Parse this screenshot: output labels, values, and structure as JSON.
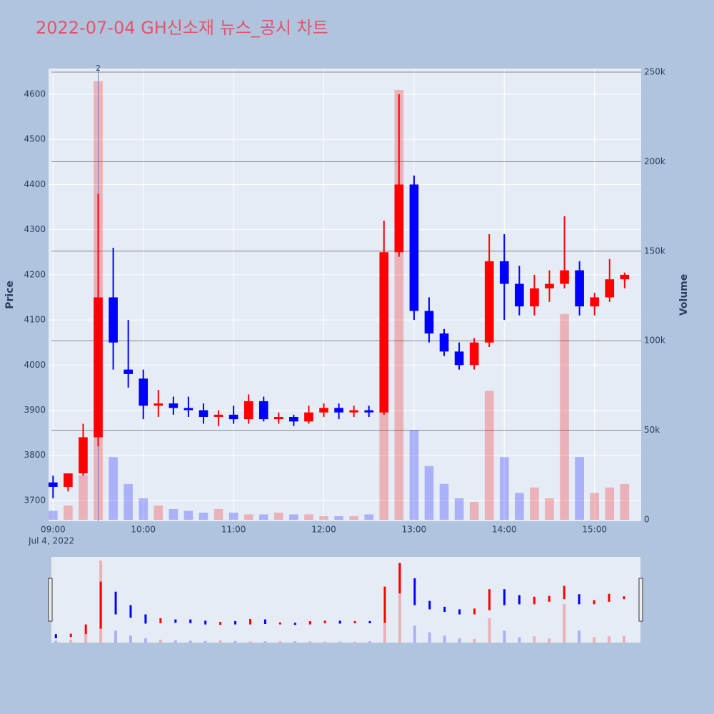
{
  "chart_data": {
    "type": "candlestick",
    "title": "2022-07-04 GH신소재 뉴스_공시 차트",
    "x_date_label": "Jul 4, 2022",
    "y_axis_label": "Price",
    "y2_axis_label": "Volume",
    "annotation": "2",
    "annotation_x": "09:30",
    "increasing_color": "#ff0000",
    "decreasing_color": "#0000ff",
    "x": [
      "09:00",
      "09:10",
      "09:20",
      "09:30",
      "09:40",
      "09:50",
      "10:00",
      "10:10",
      "10:20",
      "10:30",
      "10:40",
      "10:50",
      "11:00",
      "11:10",
      "11:20",
      "11:30",
      "11:40",
      "11:50",
      "12:00",
      "12:10",
      "12:20",
      "12:30",
      "12:40",
      "12:50",
      "13:00",
      "13:10",
      "13:20",
      "13:30",
      "13:40",
      "13:50",
      "14:00",
      "14:10",
      "14:20",
      "14:30",
      "14:40",
      "14:50",
      "15:00",
      "15:10",
      "15:20"
    ],
    "open": [
      3740,
      3730,
      3760,
      3840,
      4150,
      3990,
      3970,
      3910,
      3915,
      3905,
      3900,
      3885,
      3890,
      3880,
      3920,
      3880,
      3885,
      3875,
      3895,
      3905,
      3895,
      3900,
      3895,
      4250,
      4400,
      4120,
      4070,
      4030,
      4000,
      4050,
      4230,
      4180,
      4130,
      4170,
      4180,
      4210,
      4130,
      4150,
      4190
    ],
    "high": [
      3755,
      3760,
      3870,
      4380,
      4260,
      4100,
      3990,
      3945,
      3930,
      3930,
      3915,
      3900,
      3910,
      3935,
      3930,
      3895,
      3890,
      3910,
      3915,
      3915,
      3910,
      3910,
      4320,
      4600,
      4420,
      4150,
      4080,
      4050,
      4060,
      4290,
      4290,
      4220,
      4200,
      4210,
      4330,
      4230,
      4160,
      4235,
      4205
    ],
    "low": [
      3705,
      3720,
      3755,
      3820,
      3990,
      3950,
      3880,
      3885,
      3890,
      3885,
      3870,
      3865,
      3870,
      3870,
      3875,
      3870,
      3865,
      3870,
      3885,
      3880,
      3885,
      3885,
      3890,
      4240,
      4100,
      4050,
      4020,
      3990,
      3990,
      4040,
      4100,
      4110,
      4110,
      4140,
      4170,
      4110,
      4110,
      4140,
      4170
    ],
    "close": [
      3730,
      3760,
      3840,
      4150,
      4050,
      3980,
      3910,
      3915,
      3905,
      3900,
      3885,
      3890,
      3880,
      3920,
      3880,
      3885,
      3875,
      3895,
      3905,
      3895,
      3900,
      3895,
      4250,
      4400,
      4120,
      4070,
      4030,
      4000,
      4050,
      4230,
      4180,
      4130,
      4170,
      4180,
      4210,
      4130,
      4150,
      4190,
      4200
    ],
    "volume": [
      5000,
      8000,
      25000,
      245000,
      35000,
      20000,
      12000,
      8000,
      6000,
      5000,
      4000,
      6000,
      4000,
      3000,
      3000,
      4000,
      3000,
      3000,
      2000,
      2000,
      2000,
      3000,
      60000,
      240000,
      50000,
      30000,
      20000,
      12000,
      10000,
      72000,
      35000,
      15000,
      18000,
      12000,
      115000,
      35000,
      15000,
      18000,
      20000
    ],
    "xlim": [
      "08:57",
      "15:31"
    ],
    "xticks": [
      "09:00",
      "10:00",
      "11:00",
      "12:00",
      "13:00",
      "14:00",
      "15:00"
    ],
    "ylim": [
      3654,
      4657
    ],
    "yticks": [
      3700,
      3800,
      3900,
      4000,
      4100,
      4200,
      4300,
      4400,
      4500,
      4600
    ],
    "y2lim": [
      -800,
      252000
    ],
    "y2ticks": [
      0,
      {
        "value": 50000,
        "label": "50k"
      },
      {
        "value": 100000,
        "label": "100k"
      },
      {
        "value": 150000,
        "label": "150k"
      },
      {
        "value": 200000,
        "label": "200k"
      },
      {
        "value": 250000,
        "label": "250k"
      }
    ]
  }
}
